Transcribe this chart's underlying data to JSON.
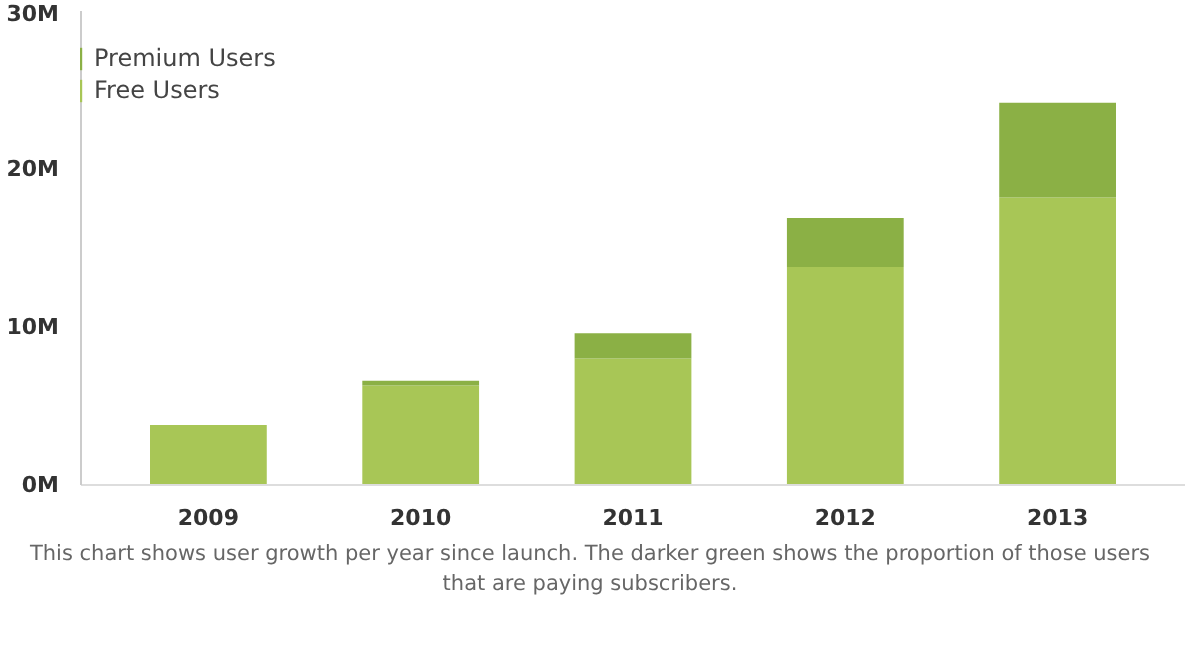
{
  "chart_data": {
    "type": "bar",
    "stacked": true,
    "categories": [
      "2009",
      "2010",
      "2011",
      "2012",
      "2013"
    ],
    "series": [
      {
        "name": "Free Users",
        "color": "#a8c656",
        "values": [
          3.8,
          6.3,
          8.0,
          13.8,
          18.2
        ]
      },
      {
        "name": "Premium Users",
        "color": "#8bb045",
        "values": [
          0,
          0.3,
          1.6,
          3.1,
          6.0
        ]
      }
    ],
    "ylim": [
      0,
      30
    ],
    "yticks": [
      {
        "value": 0,
        "label": "0M"
      },
      {
        "value": 10,
        "label": "10M"
      },
      {
        "value": 20,
        "label": "20M"
      },
      {
        "value": 30,
        "label": "30M"
      }
    ],
    "grid": false,
    "legend": "top",
    "annotations": [
      "This chart shows user growth per year since launch. The darker green shows the proportion of those users that are paying subscribers."
    ]
  }
}
